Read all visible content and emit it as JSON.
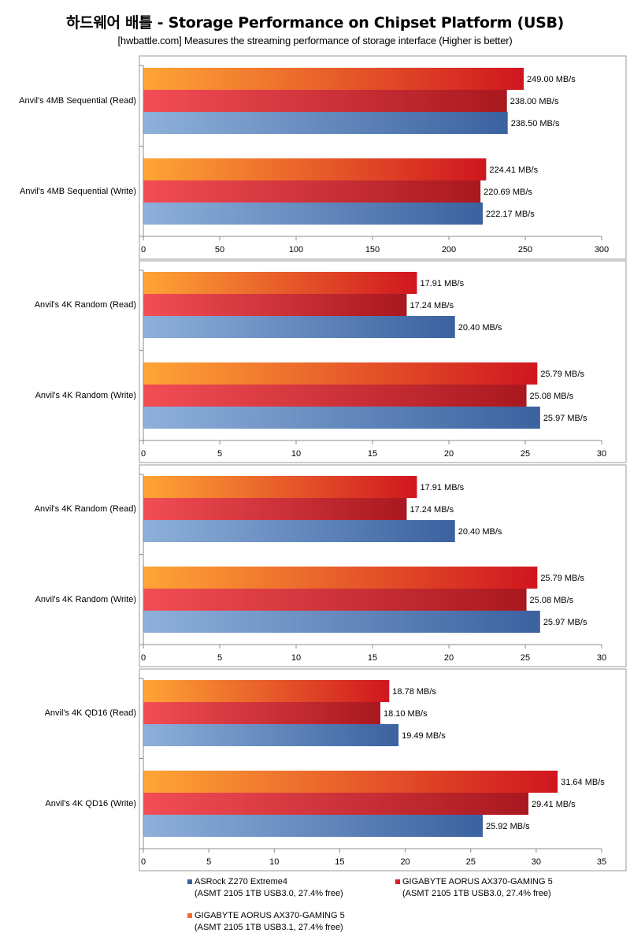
{
  "title": "하드웨어 배틀  - Storage Performance on Chipset Platform (USB)",
  "subtitle": "[hwbattle.com] Measures the streaming performance of storage interface  (Higher is better)",
  "colors": {
    "asrock": [
      "#8eb0da",
      "#3b62a0"
    ],
    "gb_usb30": [
      "#f24d55",
      "#a9181f"
    ],
    "gb_usb31": [
      "#ffa535",
      "#d0161f"
    ],
    "axis": "#8c8c8c",
    "frame": "#9a9a9a"
  },
  "legend": [
    {
      "name": "ASRock Z270 Extreme4",
      "detail": "(ASMT 2105 1TB USB3.0, 27.4% free)",
      "swatch": "#3b62a0"
    },
    {
      "name": "GIGABYTE AORUS AX370-GAMING 5",
      "detail": "(ASMT 2105 1TB USB3.0, 27.4% free)",
      "swatch": "#d42027"
    },
    {
      "name": "GIGABYTE AORUS AX370-GAMING 5",
      "detail": "(ASMT 2105 1TB USB3.1, 27.4% free)",
      "swatch": "#f26a2a"
    }
  ],
  "chart_data": [
    {
      "type": "bar",
      "orientation": "horizontal",
      "categories": [
        "Anvil's 4MB Sequential (Read)",
        "Anvil's 4MB Sequential (Write)"
      ],
      "xlim": [
        0,
        300
      ],
      "xticks": [
        0,
        50,
        100,
        150,
        200,
        250,
        300
      ],
      "unit": "MB/s",
      "series": [
        {
          "name": "GIGABYTE AORUS AX370-GAMING 5 (ASMT 2105 1TB USB3.1, 27.4% free)",
          "values": [
            249.0,
            224.41
          ],
          "labels": [
            "249.00 MB/s",
            "224.41 MB/s"
          ]
        },
        {
          "name": "GIGABYTE AORUS AX370-GAMING 5 (ASMT 2105 1TB USB3.0, 27.4% free)",
          "values": [
            238.0,
            220.69
          ],
          "labels": [
            "238.00 MB/s",
            "220.69 MB/s"
          ]
        },
        {
          "name": "ASRock Z270 Extreme4 (ASMT 2105 1TB USB3.0, 27.4% free)",
          "values": [
            238.5,
            222.17
          ],
          "labels": [
            "238.50 MB/s",
            "222.17 MB/s"
          ]
        }
      ]
    },
    {
      "type": "bar",
      "orientation": "horizontal",
      "categories": [
        "Anvil's 4K Random (Read)",
        "Anvil's 4K Random (Write)"
      ],
      "xlim": [
        0,
        30
      ],
      "xticks": [
        0,
        5,
        10,
        15,
        20,
        25,
        30
      ],
      "unit": "MB/s",
      "series": [
        {
          "name": "GIGABYTE AORUS AX370-GAMING 5 (ASMT 2105 1TB USB3.1, 27.4% free)",
          "values": [
            17.91,
            25.79
          ],
          "labels": [
            "17.91 MB/s",
            "25.79 MB/s"
          ]
        },
        {
          "name": "GIGABYTE AORUS AX370-GAMING 5 (ASMT 2105 1TB USB3.0, 27.4% free)",
          "values": [
            17.24,
            25.08
          ],
          "labels": [
            "17.24 MB/s",
            "25.08 MB/s"
          ]
        },
        {
          "name": "ASRock Z270 Extreme4 (ASMT 2105 1TB USB3.0, 27.4% free)",
          "values": [
            20.4,
            25.97
          ],
          "labels": [
            "20.40 MB/s",
            "25.97 MB/s"
          ]
        }
      ]
    },
    {
      "type": "bar",
      "orientation": "horizontal",
      "categories": [
        "Anvil's 4K Random (Read)",
        "Anvil's 4K Random (Write)"
      ],
      "xlim": [
        0,
        30
      ],
      "xticks": [
        0,
        5,
        10,
        15,
        20,
        25,
        30
      ],
      "unit": "MB/s",
      "series": [
        {
          "name": "GIGABYTE AORUS AX370-GAMING 5 (ASMT 2105 1TB USB3.1, 27.4% free)",
          "values": [
            17.91,
            25.79
          ],
          "labels": [
            "17.91 MB/s",
            "25.79 MB/s"
          ]
        },
        {
          "name": "GIGABYTE AORUS AX370-GAMING 5 (ASMT 2105 1TB USB3.0, 27.4% free)",
          "values": [
            17.24,
            25.08
          ],
          "labels": [
            "17.24 MB/s",
            "25.08 MB/s"
          ]
        },
        {
          "name": "ASRock Z270 Extreme4 (ASMT 2105 1TB USB3.0, 27.4% free)",
          "values": [
            20.4,
            25.97
          ],
          "labels": [
            "20.40 MB/s",
            "25.97 MB/s"
          ]
        }
      ]
    },
    {
      "type": "bar",
      "orientation": "horizontal",
      "categories": [
        "Anvil's 4K QD16 (Read)",
        "Anvil's 4K QD16 (Write)"
      ],
      "xlim": [
        0,
        35
      ],
      "xticks": [
        0,
        5,
        10,
        15,
        20,
        25,
        30,
        35
      ],
      "unit": "MB/s",
      "series": [
        {
          "name": "GIGABYTE AORUS AX370-GAMING 5 (ASMT 2105 1TB USB3.1, 27.4% free)",
          "values": [
            18.78,
            31.64
          ],
          "labels": [
            "18.78 MB/s",
            "31.64 MB/s"
          ]
        },
        {
          "name": "GIGABYTE AORUS AX370-GAMING 5 (ASMT 2105 1TB USB3.0, 27.4% free)",
          "values": [
            18.1,
            29.41
          ],
          "labels": [
            "18.10 MB/s",
            "29.41 MB/s"
          ]
        },
        {
          "name": "ASRock Z270 Extreme4 (ASMT 2105 1TB USB3.0, 27.4% free)",
          "values": [
            19.49,
            25.92
          ],
          "labels": [
            "19.49 MB/s",
            "25.92 MB/s"
          ]
        }
      ]
    }
  ]
}
